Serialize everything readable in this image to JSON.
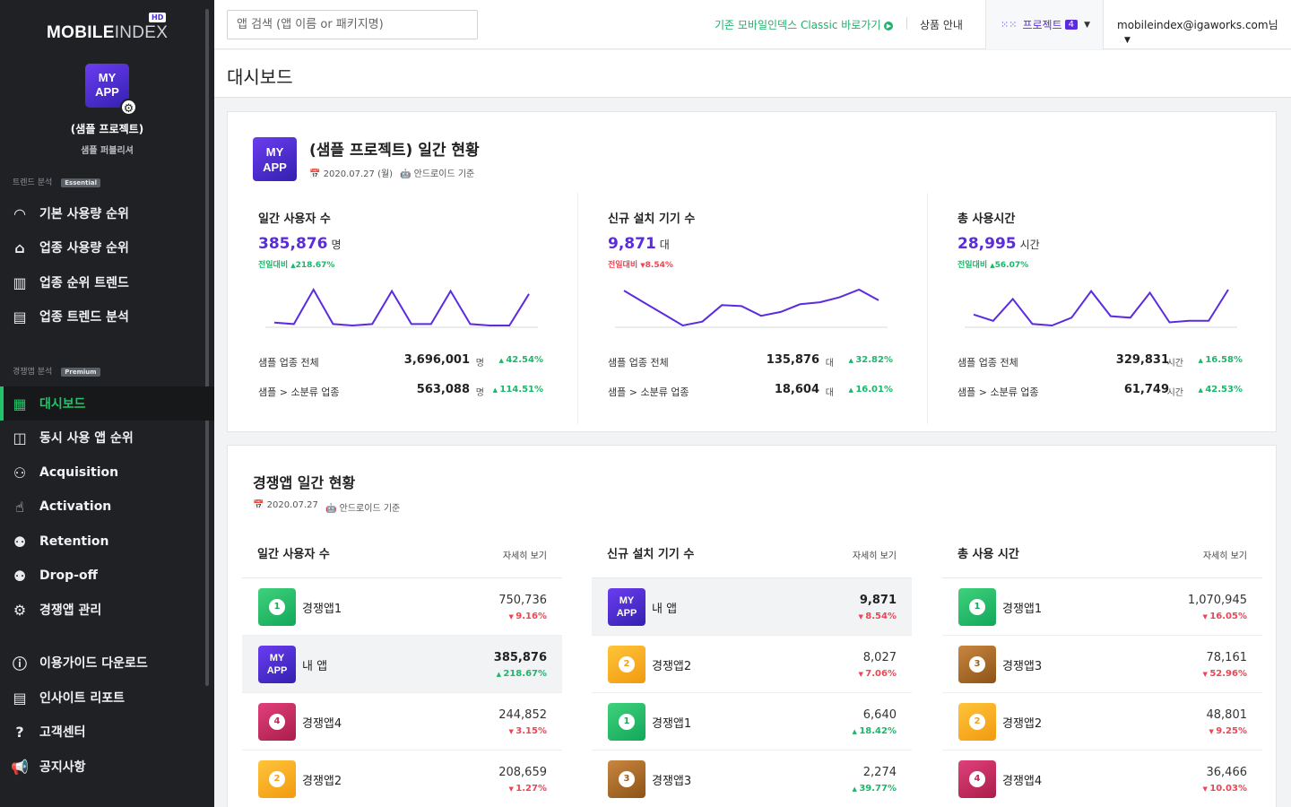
{
  "sidebar": {
    "logo_main": "MOBILE",
    "logo_thin": "INDEX",
    "logo_hd": "HD",
    "app_icon_line1": "MY",
    "app_icon_line2": "APP",
    "project_name": "(샘플 프로젝트)",
    "role": "샘플 퍼블리셔",
    "section1": {
      "title": "트렌드 분석",
      "badge": "Essential"
    },
    "section2": {
      "title": "경쟁앱 분석",
      "badge": "Premium"
    },
    "items": [
      {
        "label": "기본 사용량 순위",
        "icon": "gauge-icon"
      },
      {
        "label": "업종 사용량 순위",
        "icon": "store-icon"
      },
      {
        "label": "업종 순위 트렌드",
        "icon": "bar-chart-icon"
      },
      {
        "label": "업종 트렌드 분석",
        "icon": "trend-chart-icon"
      },
      {
        "label": "대시보드",
        "icon": "dashboard-icon"
      },
      {
        "label": "동시 사용 앱 순위",
        "icon": "overlap-icon"
      },
      {
        "label": "Acquisition",
        "icon": "add-user-icon"
      },
      {
        "label": "Activation",
        "icon": "tap-icon"
      },
      {
        "label": "Retention",
        "icon": "user-retention-icon"
      },
      {
        "label": "Drop-off",
        "icon": "user-dropoff-icon"
      },
      {
        "label": "경쟁앱 관리",
        "icon": "gear-icon"
      },
      {
        "label": "이용가이드 다운로드",
        "icon": "info-icon"
      },
      {
        "label": "인사이트 리포트",
        "icon": "report-icon"
      },
      {
        "label": "고객센터",
        "icon": "help-icon"
      },
      {
        "label": "공지사항",
        "icon": "megaphone-icon"
      }
    ]
  },
  "topbar": {
    "search_placeholder": "앱 검색 (앱 이름 or 패키지명)",
    "classic_link": "기존 모바일인덱스 Classic 바로가기",
    "product_info": "상품 안내",
    "project_label": "프로젝트",
    "project_count": "4",
    "user": "mobileindex@igaworks.com님"
  },
  "page": {
    "title": "대시보드"
  },
  "daily": {
    "icon_line1": "MY",
    "icon_line2": "APP",
    "title": "(샘플 프로젝트) 일간 현황",
    "date": "2020.07.27 (월)",
    "platform": "안드로이드 기준",
    "metrics": [
      {
        "label": "일간 사용자 수",
        "value": "385,876",
        "unit": "명",
        "change_label": "전일대비",
        "change": "218.67%",
        "trend": "up",
        "spark": [
          4,
          3,
          27,
          3,
          2,
          3,
          26,
          3,
          3,
          26,
          3,
          2,
          2,
          24
        ],
        "rows": [
          {
            "name": "샘플 업종 전체",
            "value": "3,696,001",
            "unit": "명",
            "pct": "42.54%"
          },
          {
            "name": "샘플 > 소분류 업종",
            "value": "563,088",
            "unit": "명",
            "pct": "114.51%"
          }
        ]
      },
      {
        "label": "신규 설치 기기 수",
        "value": "9,871",
        "unit": "대",
        "change_label": "전일대비",
        "change": "8.54%",
        "trend": "down",
        "spark": [
          40,
          28,
          16,
          4,
          8,
          25,
          24,
          14,
          18,
          26,
          28,
          33,
          41,
          30
        ],
        "rows": [
          {
            "name": "샘플 업종 전체",
            "value": "135,876",
            "unit": "대",
            "pct": "32.82%"
          },
          {
            "name": "샘플 > 소분류 업종",
            "value": "18,604",
            "unit": "대",
            "pct": "16.01%"
          }
        ]
      },
      {
        "label": "총 사용시간",
        "value": "28,995",
        "unit": "시간",
        "change_label": "전일대비",
        "change": "56.07%",
        "trend": "up",
        "spark": [
          10,
          6,
          20,
          4,
          3,
          8,
          25,
          9,
          8,
          24,
          5,
          6,
          6,
          26
        ],
        "rows": [
          {
            "name": "샘플 업종 전체",
            "value": "329,831",
            "unit": "시간",
            "pct": "16.58%"
          },
          {
            "name": "샘플 > 소분류 업종",
            "value": "61,749",
            "unit": "시간",
            "pct": "42.53%"
          }
        ]
      }
    ]
  },
  "competitors": {
    "title": "경쟁앱 일간 현황",
    "date": "2020.07.27",
    "platform": "안드로이드 기준",
    "more_label": "자세히 보기",
    "columns": [
      {
        "title": "일간 사용자 수",
        "rows": [
          {
            "name": "경쟁앱1",
            "rank": "1",
            "value": "750,736",
            "pct": "9.16%",
            "trend": "down"
          },
          {
            "name": "내 앱",
            "rank": "my",
            "value": "385,876",
            "pct": "218.67%",
            "trend": "up"
          },
          {
            "name": "경쟁앱4",
            "rank": "4",
            "value": "244,852",
            "pct": "3.15%",
            "trend": "down"
          },
          {
            "name": "경쟁앱2",
            "rank": "2",
            "value": "208,659",
            "pct": "1.27%",
            "trend": "down"
          }
        ]
      },
      {
        "title": "신규 설치 기기 수",
        "rows": [
          {
            "name": "내 앱",
            "rank": "my",
            "value": "9,871",
            "pct": "8.54%",
            "trend": "down"
          },
          {
            "name": "경쟁앱2",
            "rank": "2",
            "value": "8,027",
            "pct": "7.06%",
            "trend": "down"
          },
          {
            "name": "경쟁앱1",
            "rank": "1",
            "value": "6,640",
            "pct": "18.42%",
            "trend": "up"
          },
          {
            "name": "경쟁앱3",
            "rank": "3",
            "value": "2,274",
            "pct": "39.77%",
            "trend": "up"
          }
        ]
      },
      {
        "title": "총 사용 시간",
        "rows": [
          {
            "name": "경쟁앱1",
            "rank": "1",
            "value": "1,070,945",
            "pct": "16.05%",
            "trend": "down"
          },
          {
            "name": "경쟁앱3",
            "rank": "3",
            "value": "78,161",
            "pct": "52.96%",
            "trend": "down"
          },
          {
            "name": "경쟁앱2",
            "rank": "2",
            "value": "48,801",
            "pct": "9.25%",
            "trend": "down"
          },
          {
            "name": "경쟁앱4",
            "rank": "4",
            "value": "36,466",
            "pct": "10.03%",
            "trend": "down"
          }
        ]
      }
    ]
  },
  "colors": {
    "accent": "#5b2be0",
    "active_green": "#22c36a",
    "up": "#1db66a",
    "down": "#ef4452"
  }
}
